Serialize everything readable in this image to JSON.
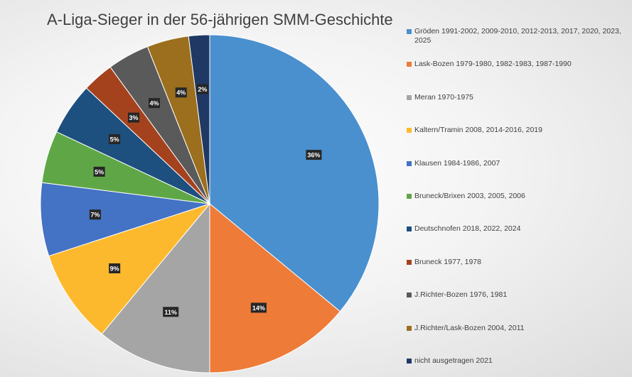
{
  "chart_data": {
    "type": "pie",
    "title": "A-Liga-Sieger in der 56-jährigen SMM-Geschichte",
    "legend_position": "right",
    "slices": [
      {
        "label": "Gröden 1991-2002, 2009-2010, 2012-2013, 2017, 2020, 2023, 2025",
        "value": 36,
        "data_label": "36%",
        "color": "#4A90CE"
      },
      {
        "label": "Lask-Bozen 1979-1980, 1982-1983, 1987-1990",
        "value": 14,
        "data_label": "14%",
        "color": "#EE7B38"
      },
      {
        "label": "Meran 1970-1975",
        "value": 11,
        "data_label": "11%",
        "color": "#A5A5A5"
      },
      {
        "label": "Kaltern/Tramin 2008, 2014-2016, 2019",
        "value": 9,
        "data_label": "9%",
        "color": "#FDB92E"
      },
      {
        "label": "Klausen 1984-1986, 2007",
        "value": 7,
        "data_label": "7%",
        "color": "#4472C4"
      },
      {
        "label": "Bruneck/Brixen 2003, 2005, 2006",
        "value": 5,
        "data_label": "5%",
        "color": "#5FA746"
      },
      {
        "label": "Deutschnofen 2018, 2022, 2024",
        "value": 5,
        "data_label": "5%",
        "color": "#1D4F7F"
      },
      {
        "label": "Bruneck 1977, 1978",
        "value": 3,
        "data_label": "3%",
        "color": "#A5421E"
      },
      {
        "label": "J.Richter-Bozen 1976, 1981",
        "value": 4,
        "data_label": "4%",
        "color": "#5A5A5A"
      },
      {
        "label": "J.Richter/Lask-Bozen 2004, 2011",
        "value": 4,
        "data_label": "4%",
        "color": "#9B6F1D"
      },
      {
        "label": "nicht ausgetragen 2021",
        "value": 2,
        "data_label": "2%",
        "color": "#203864"
      }
    ]
  }
}
